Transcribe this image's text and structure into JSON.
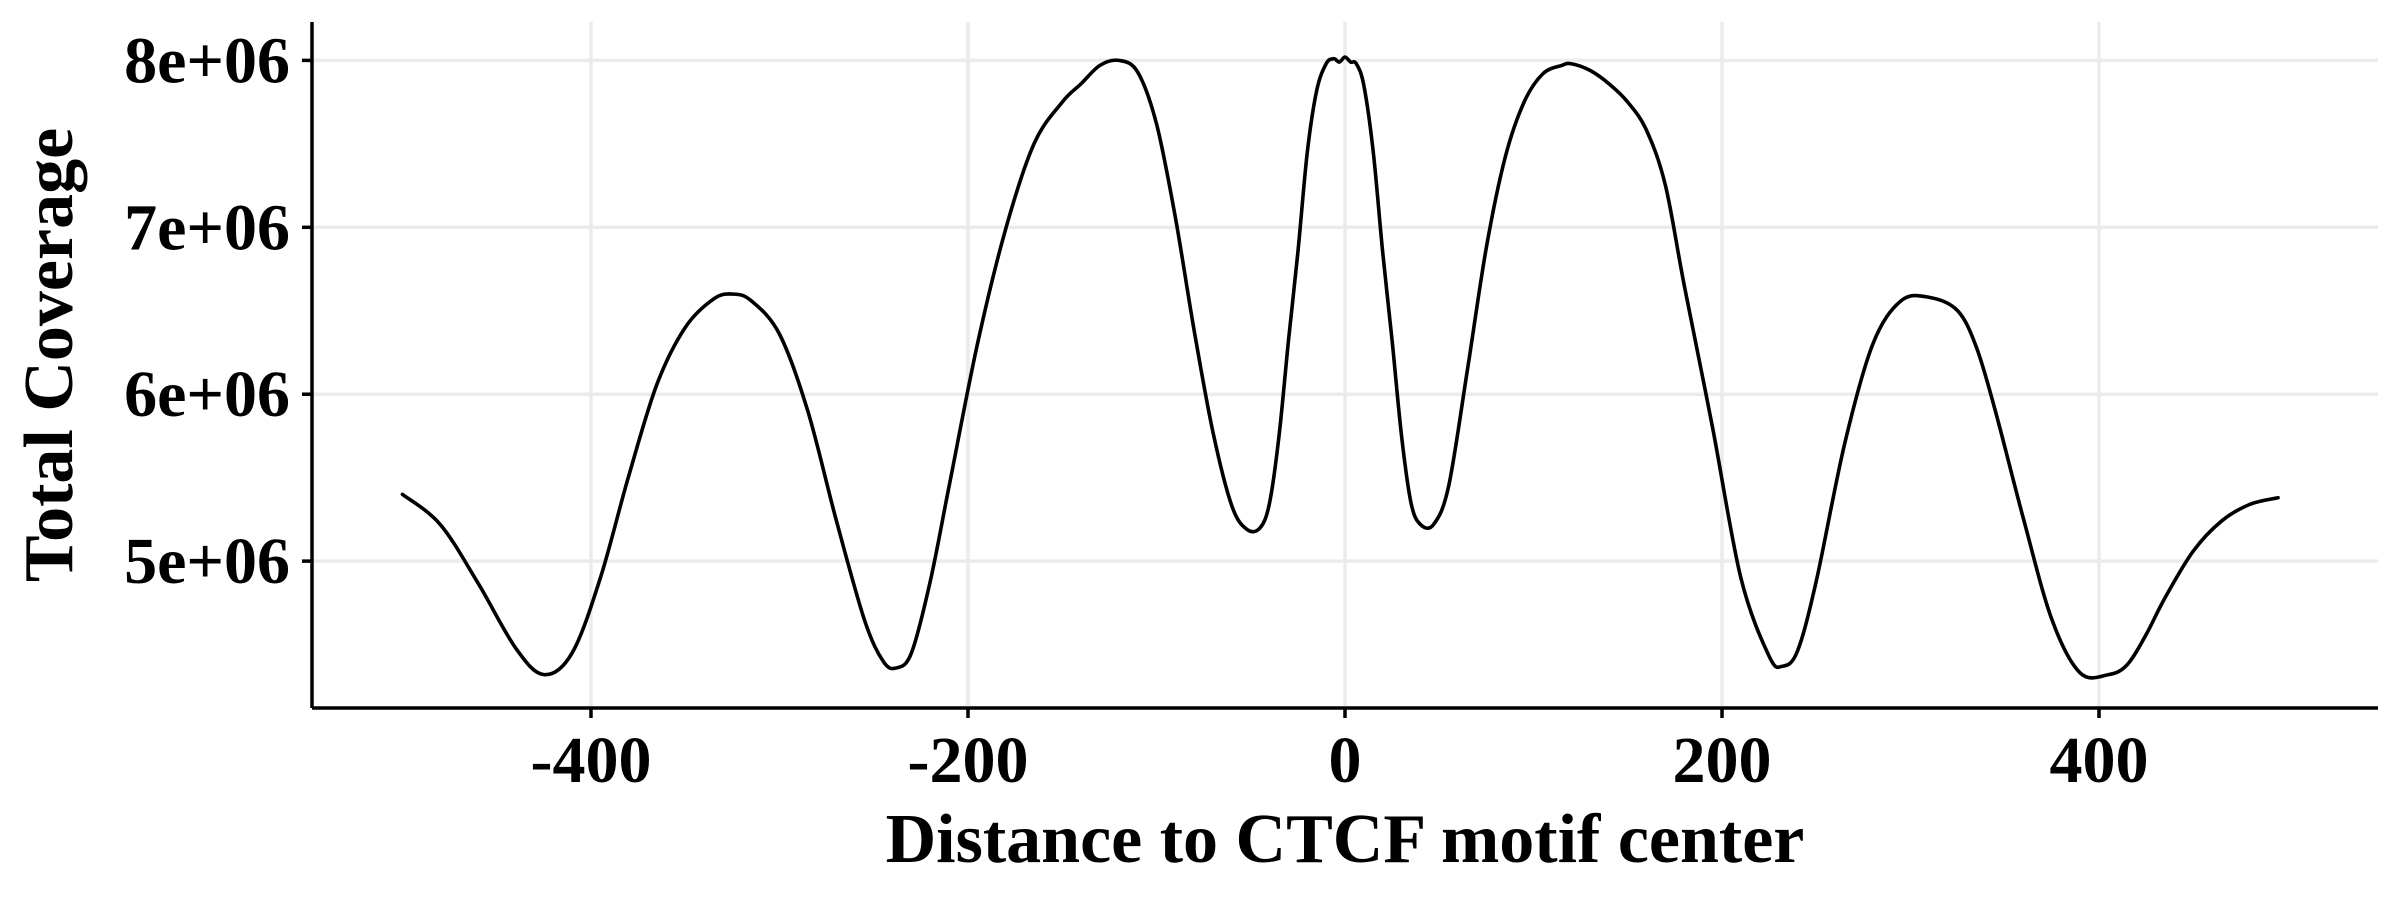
{
  "chart_data": {
    "type": "line",
    "title": "",
    "xlabel": "Distance to CTCF motif center",
    "ylabel": "Total Coverage",
    "xlim": [
      -548,
      548
    ],
    "ylim": [
      4120000,
      8230000
    ],
    "x_ticks": [
      -400,
      -200,
      0,
      200,
      400
    ],
    "x_tick_labels": [
      "-400",
      "-200",
      "0",
      "200",
      "400"
    ],
    "y_ticks": [
      5000000,
      6000000,
      7000000,
      8000000
    ],
    "y_tick_labels": [
      "5e+06",
      "6e+06",
      "7e+06",
      "8e+06"
    ],
    "grid": true,
    "legend": "none",
    "colors": {
      "line": "#000000",
      "grid": "#ebebeb",
      "axis": "#000000"
    },
    "series": [
      {
        "x": [
          -500,
          -480,
          -460,
          -440,
          -425,
          -410,
          -395,
          -380,
          -365,
          -350,
          -335,
          -325,
          -315,
          -300,
          -285,
          -270,
          -255,
          -245,
          -238,
          -230,
          -220,
          -210,
          -195,
          -180,
          -165,
          -150,
          -140,
          -130,
          -120,
          -110,
          -100,
          -90,
          -80,
          -70,
          -60,
          -52,
          -45,
          -40,
          -35,
          -30,
          -25,
          -20,
          -15,
          -10,
          -6,
          -3,
          0,
          3,
          6,
          10,
          15,
          20,
          25,
          30,
          35,
          40,
          47,
          55,
          65,
          75,
          85,
          95,
          105,
          115,
          120,
          130,
          140,
          150,
          160,
          170,
          180,
          195,
          210,
          225,
          232,
          240,
          250,
          265,
          280,
          295,
          310,
          325,
          335,
          345,
          360,
          375,
          390,
          405,
          415,
          425,
          435,
          450,
          465,
          480,
          495
        ],
        "y": [
          5400000,
          5220000,
          4870000,
          4480000,
          4320000,
          4450000,
          4900000,
          5510000,
          6060000,
          6400000,
          6570000,
          6600000,
          6560000,
          6360000,
          5900000,
          5250000,
          4650000,
          4400000,
          4360000,
          4450000,
          4880000,
          5450000,
          6300000,
          6990000,
          7500000,
          7750000,
          7860000,
          7970000,
          8000000,
          7930000,
          7620000,
          7060000,
          6380000,
          5770000,
          5330000,
          5190000,
          5200000,
          5350000,
          5750000,
          6320000,
          6850000,
          7450000,
          7820000,
          7980000,
          8010000,
          7990000,
          8020000,
          7990000,
          7980000,
          7850000,
          7450000,
          6850000,
          6320000,
          5750000,
          5350000,
          5220000,
          5220000,
          5450000,
          6150000,
          6880000,
          7420000,
          7750000,
          7920000,
          7970000,
          7980000,
          7940000,
          7860000,
          7750000,
          7580000,
          7250000,
          6650000,
          5800000,
          4900000,
          4430000,
          4370000,
          4460000,
          4880000,
          5700000,
          6300000,
          6560000,
          6580000,
          6500000,
          6280000,
          5900000,
          5250000,
          4650000,
          4330000,
          4320000,
          4380000,
          4560000,
          4780000,
          5060000,
          5240000,
          5340000,
          5380000
        ]
      }
    ]
  }
}
